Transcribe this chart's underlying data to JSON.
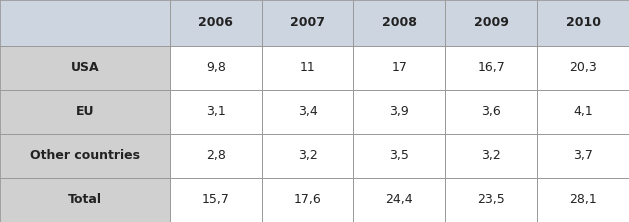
{
  "columns": [
    "",
    "2006",
    "2007",
    "2008",
    "2009",
    "2010"
  ],
  "rows": [
    {
      "label": "USA",
      "values": [
        "9,8",
        "11",
        "17",
        "16,7",
        "20,3"
      ]
    },
    {
      "label": "EU",
      "values": [
        "3,1",
        "3,4",
        "3,9",
        "3,6",
        "4,1"
      ]
    },
    {
      "label": "Other countries",
      "values": [
        "2,8",
        "3,2",
        "3,5",
        "3,2",
        "3,7"
      ]
    },
    {
      "label": "Total",
      "values": [
        "15,7",
        "17,6",
        "24,4",
        "23,5",
        "28,1"
      ]
    }
  ],
  "header_bg": "#cdd5e0",
  "row_label_bg": "#d0d0d0",
  "data_cell_bg": "#ffffff",
  "border_color": "#999999",
  "text_color": "#222222",
  "font_size": 9,
  "fig_width": 6.29,
  "fig_height": 2.22
}
